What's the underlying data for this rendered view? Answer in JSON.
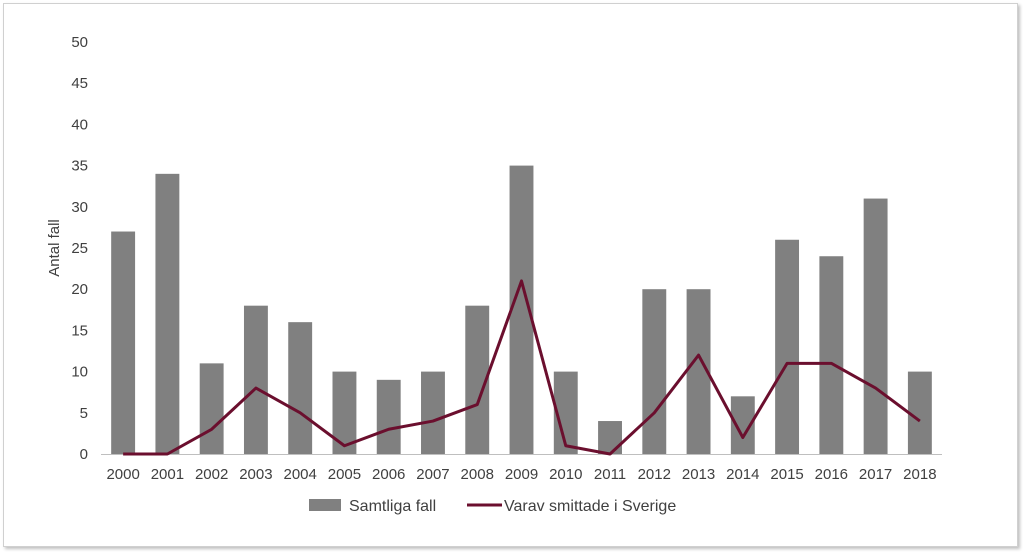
{
  "chart_data": {
    "type": "bar",
    "title": "",
    "xlabel": "",
    "ylabel": "Antal fall",
    "ylim": [
      0,
      50
    ],
    "yticks": [
      0,
      5,
      10,
      15,
      20,
      25,
      30,
      35,
      40,
      45,
      50
    ],
    "grid": false,
    "legend_position": "bottom",
    "categories": [
      "2000",
      "2001",
      "2002",
      "2003",
      "2004",
      "2005",
      "2006",
      "2007",
      "2008",
      "2009",
      "2010",
      "2011",
      "2012",
      "2013",
      "2014",
      "2015",
      "2016",
      "2017",
      "2018"
    ],
    "series": [
      {
        "name": "Samtliga fall",
        "kind": "bar",
        "color": "#808080",
        "values": [
          27,
          34,
          11,
          18,
          16,
          10,
          9,
          10,
          18,
          35,
          10,
          4,
          20,
          20,
          7,
          26,
          24,
          31,
          10
        ]
      },
      {
        "name": "Varav smittade i Sverige",
        "kind": "line",
        "color": "#6b0f2e",
        "values": [
          0,
          0,
          3,
          8,
          5,
          1,
          3,
          4,
          6,
          21,
          1,
          0,
          5,
          12,
          2,
          11,
          11,
          8,
          4
        ]
      }
    ]
  }
}
